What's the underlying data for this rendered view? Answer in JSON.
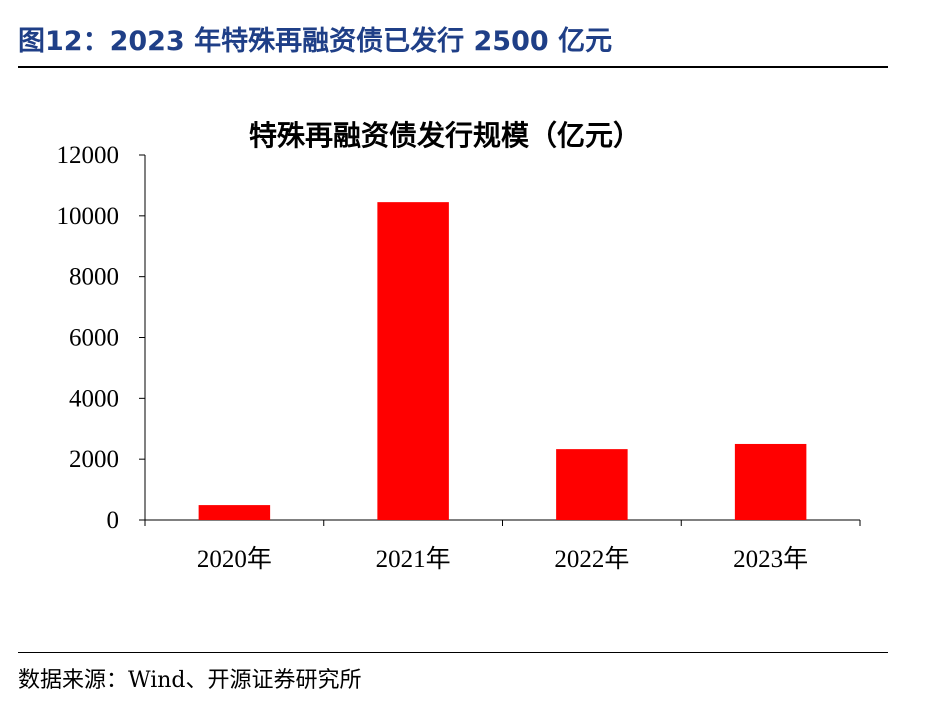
{
  "figure": {
    "header": "图12：2023 年特殊再融资债已发行 2500 亿元",
    "source": "数据来源：Wind、开源证券研究所"
  },
  "chart_data": {
    "type": "bar",
    "title": "特殊再融资债发行规模（亿元）",
    "categories": [
      "2020年",
      "2021年",
      "2022年",
      "2023年"
    ],
    "values": [
      490,
      10450,
      2330,
      2500
    ],
    "ylim": [
      0,
      12000
    ],
    "yticks": [
      0,
      2000,
      4000,
      6000,
      8000,
      10000,
      12000
    ],
    "xlabel": "",
    "ylabel": "",
    "bar_color": "#ff0000",
    "grid": false,
    "legend": "none"
  }
}
